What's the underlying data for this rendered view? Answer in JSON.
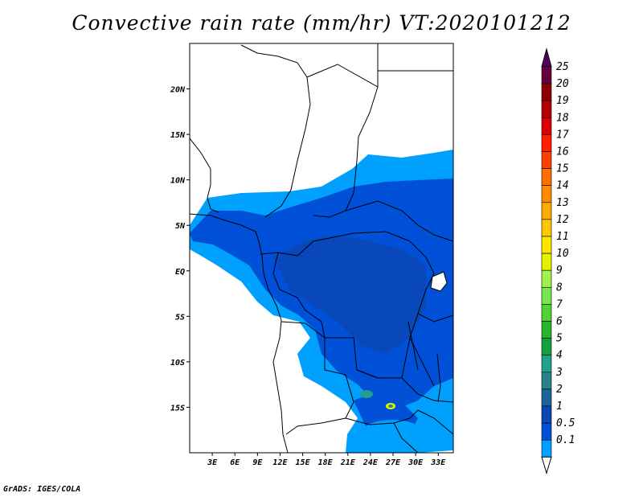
{
  "title": "Convective rain rate (mm/hr) VT:2020101212",
  "credit": "GrADS: IGES/COLA",
  "map": {
    "lon_range": [
      0,
      35
    ],
    "lat_range": [
      -20,
      25
    ],
    "lon_ticks": [
      {
        "value": 3,
        "label": "3E"
      },
      {
        "value": 6,
        "label": "6E"
      },
      {
        "value": 9,
        "label": "9E"
      },
      {
        "value": 12,
        "label": "12E"
      },
      {
        "value": 15,
        "label": "15E"
      },
      {
        "value": 18,
        "label": "18E"
      },
      {
        "value": 21,
        "label": "21E"
      },
      {
        "value": 24,
        "label": "24E"
      },
      {
        "value": 27,
        "label": "27E"
      },
      {
        "value": 30,
        "label": "30E"
      },
      {
        "value": 33,
        "label": "33E"
      }
    ],
    "lat_ticks": [
      {
        "value": 20,
        "label": "20N"
      },
      {
        "value": 15,
        "label": "15N"
      },
      {
        "value": 10,
        "label": "10N"
      },
      {
        "value": 5,
        "label": "5N"
      },
      {
        "value": 0,
        "label": "EQ"
      },
      {
        "value": -5,
        "label": "5S"
      },
      {
        "value": -10,
        "label": "10S"
      },
      {
        "value": -15,
        "label": "15S"
      }
    ]
  },
  "colorbar": {
    "levels": [
      {
        "label": "0.1",
        "color": "#00a0ff"
      },
      {
        "label": "0.5",
        "color": "#0050d8"
      },
      {
        "label": "1",
        "color": "#0a46b4"
      },
      {
        "label": "2",
        "color": "#1e6496"
      },
      {
        "label": "3",
        "color": "#28828c"
      },
      {
        "label": "4",
        "color": "#22a08c"
      },
      {
        "label": "5",
        "color": "#14a03c"
      },
      {
        "label": "6",
        "color": "#28b428"
      },
      {
        "label": "7",
        "color": "#50d232"
      },
      {
        "label": "8",
        "color": "#78e650"
      },
      {
        "label": "9",
        "color": "#a0f050"
      },
      {
        "label": "10",
        "color": "#e6f000"
      },
      {
        "label": "11",
        "color": "#ffe600"
      },
      {
        "label": "12",
        "color": "#ffc800"
      },
      {
        "label": "13",
        "color": "#ffaa00"
      },
      {
        "label": "14",
        "color": "#ff8c00"
      },
      {
        "label": "15",
        "color": "#ff6e00"
      },
      {
        "label": "16",
        "color": "#ff4000"
      },
      {
        "label": "17",
        "color": "#ff1e00"
      },
      {
        "label": "18",
        "color": "#dc0000"
      },
      {
        "label": "19",
        "color": "#b40000"
      },
      {
        "label": "20",
        "color": "#8c0000"
      },
      {
        "label": "25",
        "color": "#64003c"
      }
    ],
    "top_color": "#50005a"
  }
}
